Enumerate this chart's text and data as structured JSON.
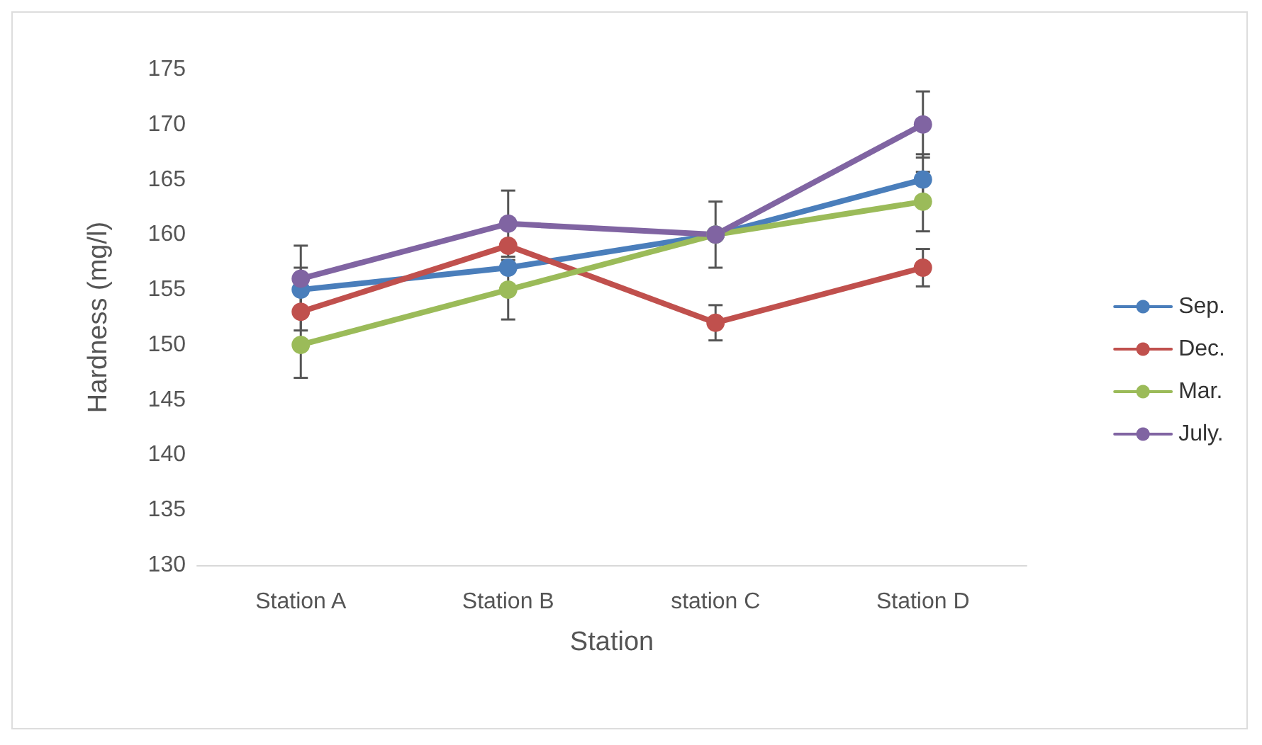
{
  "chart_data": {
    "type": "line",
    "xlabel": "Station",
    "ylabel": "Hardness (mg/l)",
    "categories": [
      "Station A",
      "Station B",
      "station C",
      "Station D"
    ],
    "series": [
      {
        "name": "Sep.",
        "color": "#4a7ebb",
        "values": [
          155,
          157,
          160,
          165
        ],
        "errors": [
          2,
          null,
          null,
          2.3
        ]
      },
      {
        "name": "Dec.",
        "color": "#c0504d",
        "values": [
          153,
          159,
          152,
          157
        ],
        "errors": [
          1.7,
          null,
          1.6,
          1.7
        ]
      },
      {
        "name": "Mar.",
        "color": "#9bbb59",
        "values": [
          150,
          155,
          160,
          163
        ],
        "errors": [
          3,
          2.7,
          null,
          2.7
        ]
      },
      {
        "name": "July.",
        "color": "#8064a2",
        "values": [
          156,
          161,
          160,
          170
        ],
        "errors": [
          3,
          3,
          3,
          3
        ]
      }
    ],
    "ylim": [
      130,
      175
    ],
    "yticks": [
      130,
      135,
      140,
      145,
      150,
      155,
      160,
      165,
      170,
      175
    ],
    "grid": false,
    "legend": "right",
    "marker": "circle",
    "line_style": "solid"
  }
}
